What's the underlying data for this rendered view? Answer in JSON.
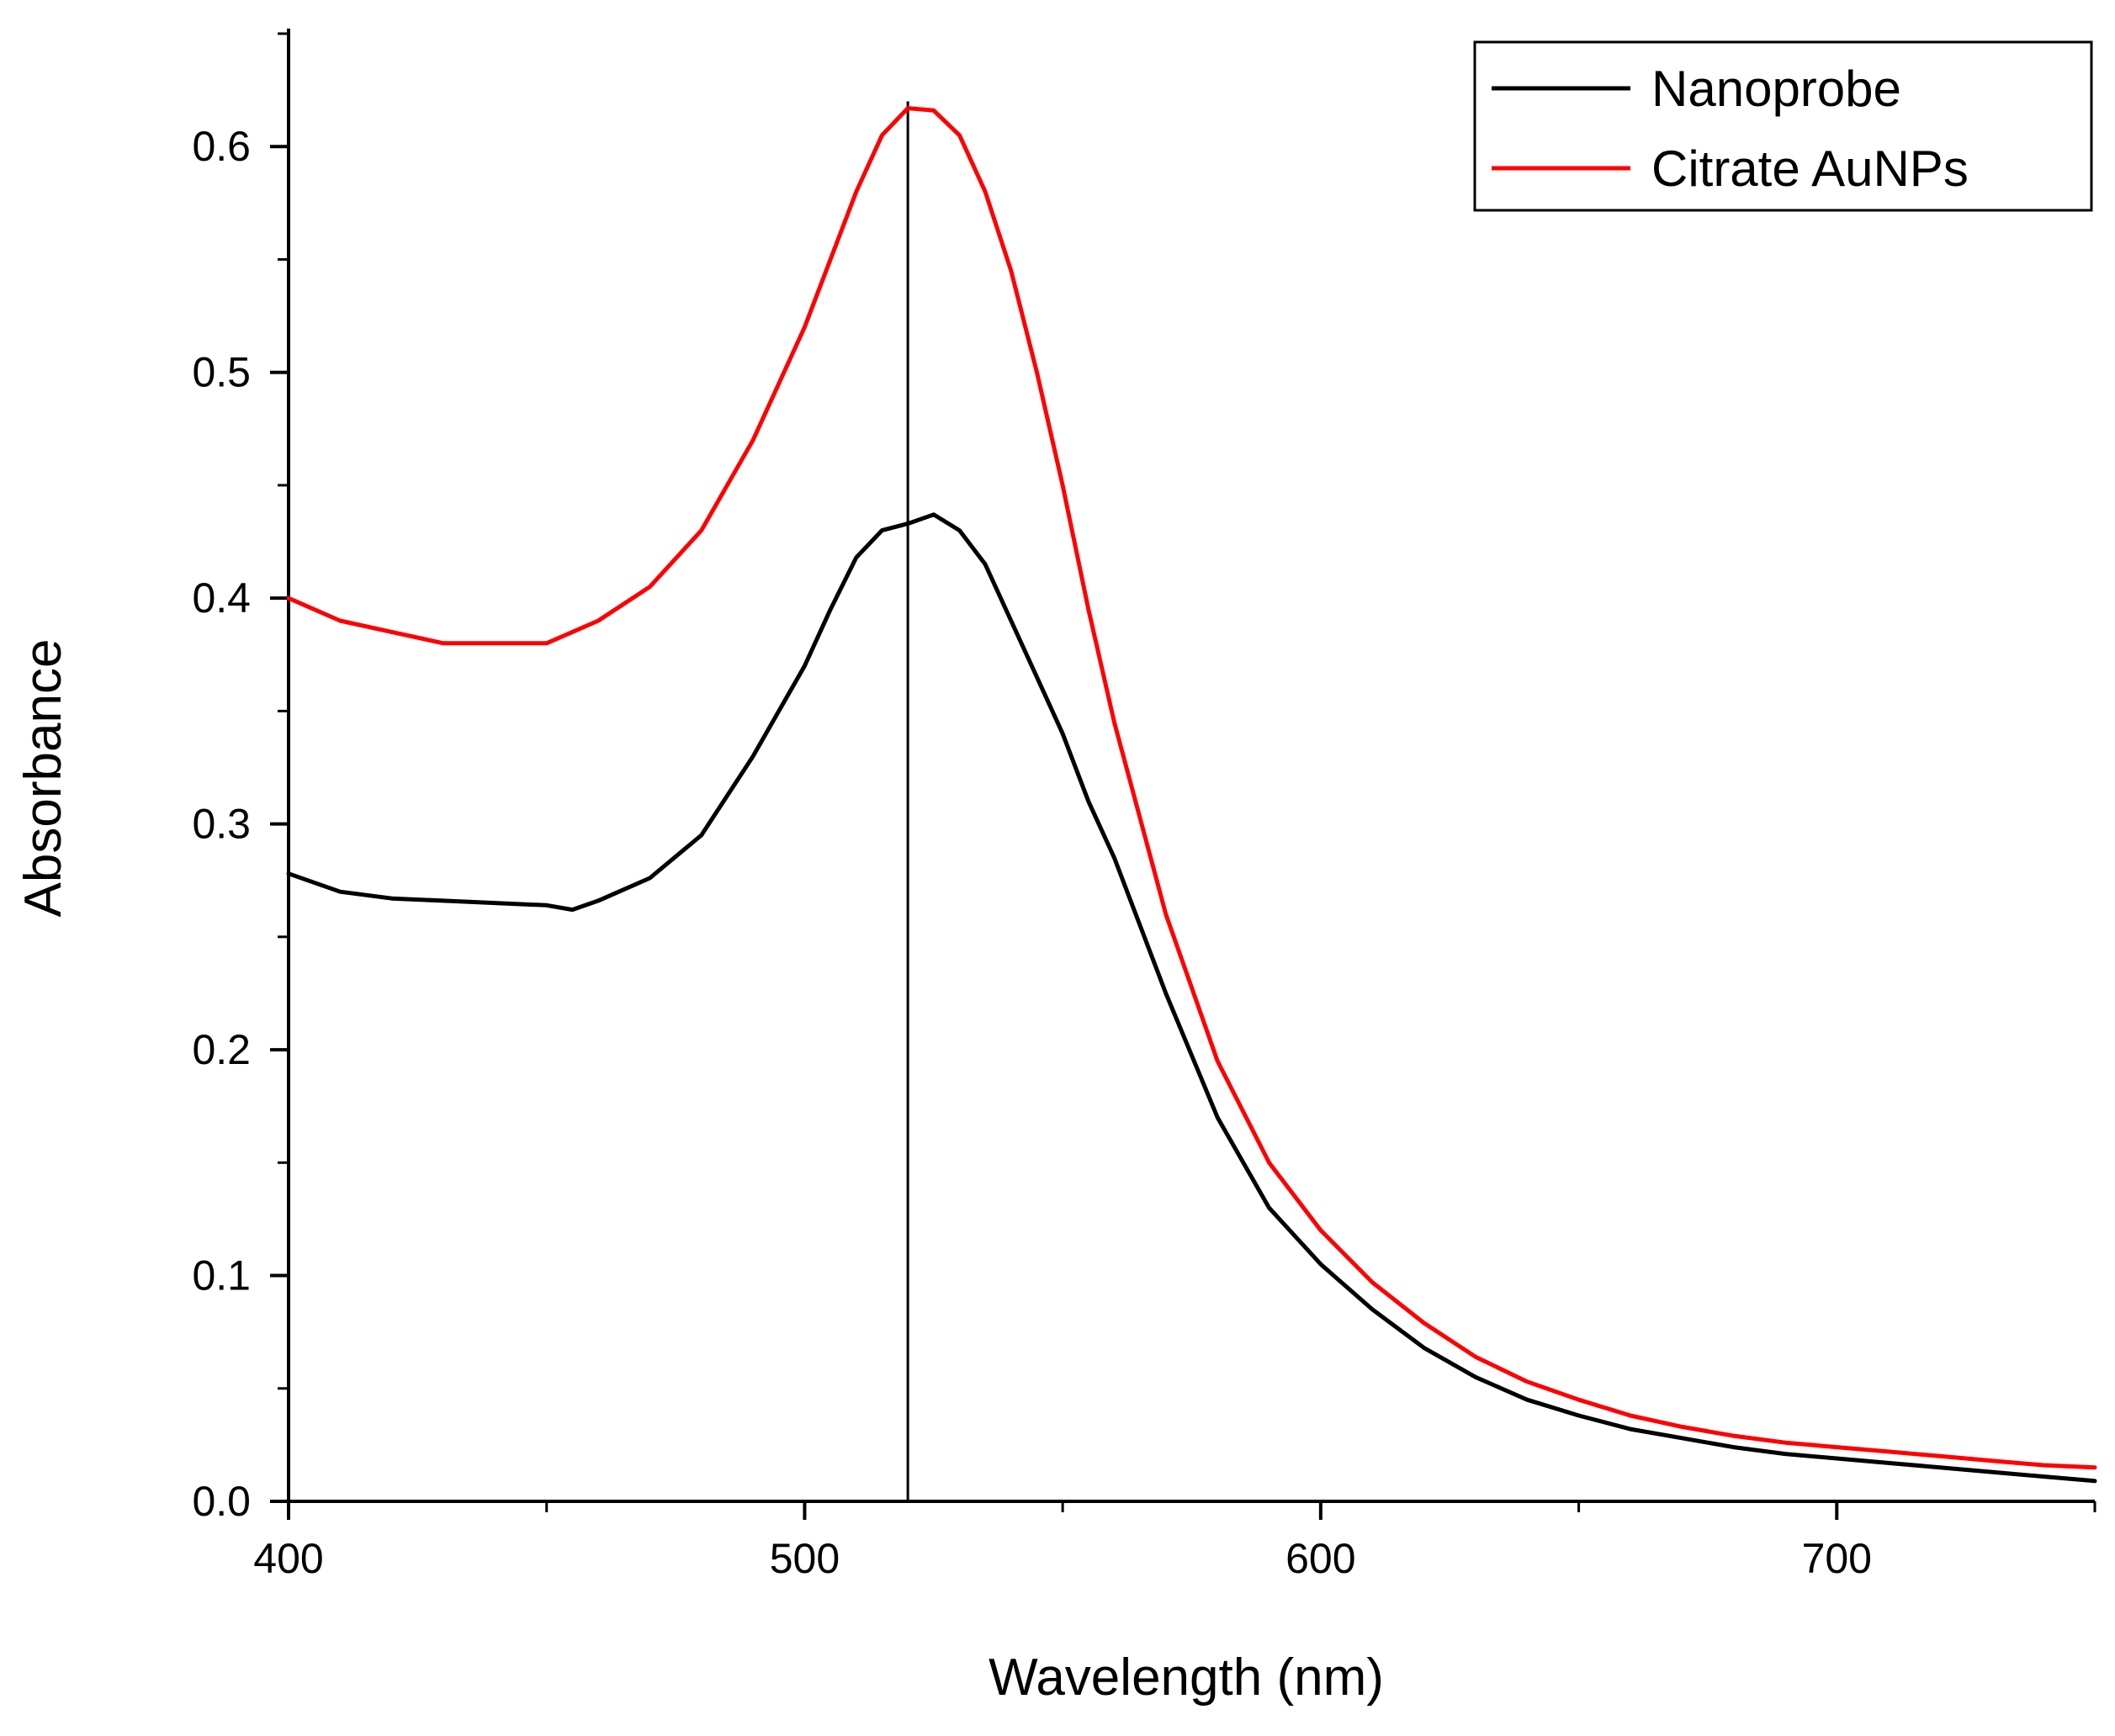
{
  "chart_data": {
    "type": "line",
    "title": "",
    "xlabel": "Wavelength (nm)",
    "ylabel": "Absorbance",
    "xlim": [
      400,
      750
    ],
    "ylim": [
      0.0,
      0.65
    ],
    "x_ticks": [
      400,
      500,
      600,
      700
    ],
    "x_tick_labels": [
      "400",
      "500",
      "600",
      "700"
    ],
    "x_minor_ticks": [
      450,
      550,
      650,
      750
    ],
    "y_ticks": [
      0.0,
      0.1,
      0.2,
      0.3,
      0.4,
      0.5,
      0.6
    ],
    "y_tick_labels": [
      "0.0",
      "0.1",
      "0.2",
      "0.3",
      "0.4",
      "0.5",
      "0.6"
    ],
    "y_minor_ticks": [
      0.05,
      0.15,
      0.25,
      0.35,
      0.45,
      0.55,
      0.65
    ],
    "grid": false,
    "legend_position": "top-right",
    "reference_line": {
      "x": 520,
      "description": "vertical line at peak"
    },
    "series": [
      {
        "name": "Nanoprobe",
        "color": "#000000",
        "x": [
          400,
          410,
          420,
          430,
          440,
          450,
          455,
          460,
          470,
          480,
          490,
          500,
          505,
          510,
          515,
          520,
          525,
          530,
          535,
          540,
          545,
          550,
          555,
          560,
          570,
          580,
          590,
          600,
          610,
          620,
          630,
          640,
          650,
          660,
          670,
          680,
          690,
          700,
          710,
          720,
          730,
          740,
          750
        ],
        "values": [
          0.278,
          0.27,
          0.267,
          0.266,
          0.265,
          0.264,
          0.262,
          0.266,
          0.276,
          0.295,
          0.33,
          0.37,
          0.395,
          0.418,
          0.43,
          0.433,
          0.437,
          0.43,
          0.415,
          0.39,
          0.365,
          0.34,
          0.31,
          0.285,
          0.225,
          0.17,
          0.13,
          0.105,
          0.085,
          0.068,
          0.055,
          0.045,
          0.038,
          0.032,
          0.028,
          0.024,
          0.021,
          0.019,
          0.017,
          0.015,
          0.013,
          0.011,
          0.009
        ]
      },
      {
        "name": "Citrate AuNPs",
        "color": "#ff0000",
        "x": [
          400,
          410,
          420,
          430,
          440,
          450,
          455,
          460,
          470,
          480,
          490,
          500,
          505,
          510,
          515,
          520,
          525,
          530,
          535,
          540,
          545,
          550,
          555,
          560,
          570,
          580,
          590,
          600,
          610,
          620,
          630,
          640,
          650,
          660,
          670,
          680,
          690,
          700,
          710,
          720,
          730,
          740,
          750
        ],
        "values": [
          0.4,
          0.39,
          0.385,
          0.38,
          0.38,
          0.38,
          0.385,
          0.39,
          0.405,
          0.43,
          0.47,
          0.52,
          0.55,
          0.58,
          0.605,
          0.617,
          0.616,
          0.605,
          0.58,
          0.545,
          0.5,
          0.45,
          0.395,
          0.345,
          0.26,
          0.195,
          0.15,
          0.12,
          0.097,
          0.079,
          0.064,
          0.053,
          0.045,
          0.038,
          0.033,
          0.029,
          0.026,
          0.024,
          0.022,
          0.02,
          0.018,
          0.016,
          0.015
        ]
      }
    ]
  }
}
